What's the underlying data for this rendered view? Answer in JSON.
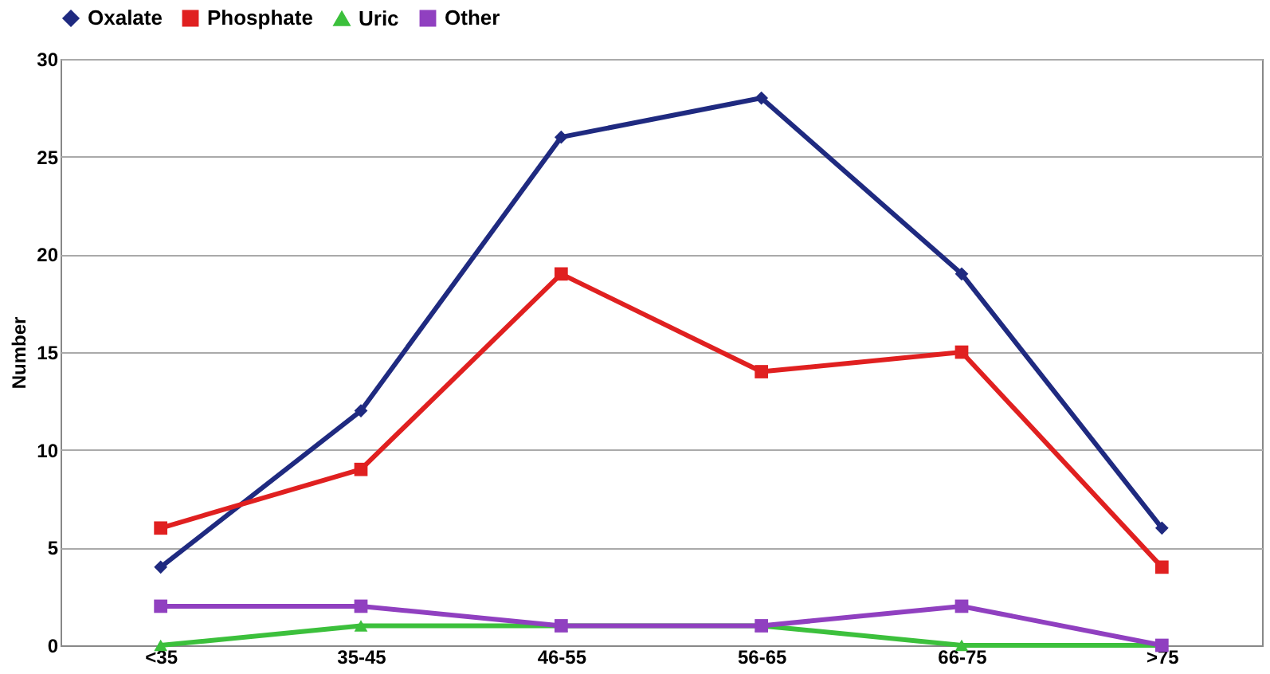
{
  "chart_data": {
    "type": "line",
    "ylabel": "Number",
    "categories": [
      "<35",
      "35-45",
      "46-55",
      "56-65",
      "66-75",
      ">75"
    ],
    "series": [
      {
        "name": "Oxalate",
        "color": "#1f2a80",
        "marker": "diamond",
        "values": [
          4,
          12,
          26,
          28,
          19,
          6
        ]
      },
      {
        "name": "Phosphate",
        "color": "#e02020",
        "marker": "square",
        "values": [
          6,
          9,
          19,
          14,
          15,
          4
        ]
      },
      {
        "name": "Uric",
        "color": "#3cc03c",
        "marker": "triangle",
        "values": [
          0,
          1,
          1,
          1,
          0,
          0
        ]
      },
      {
        "name": "Other",
        "color": "#9040c0",
        "marker": "square",
        "values": [
          2,
          2,
          1,
          1,
          2,
          0
        ]
      }
    ],
    "ylim": [
      0,
      30
    ],
    "yticks": [
      0,
      5,
      10,
      15,
      20,
      25,
      30
    ],
    "grid": "y",
    "legend": "top",
    "line_style": "solid"
  }
}
